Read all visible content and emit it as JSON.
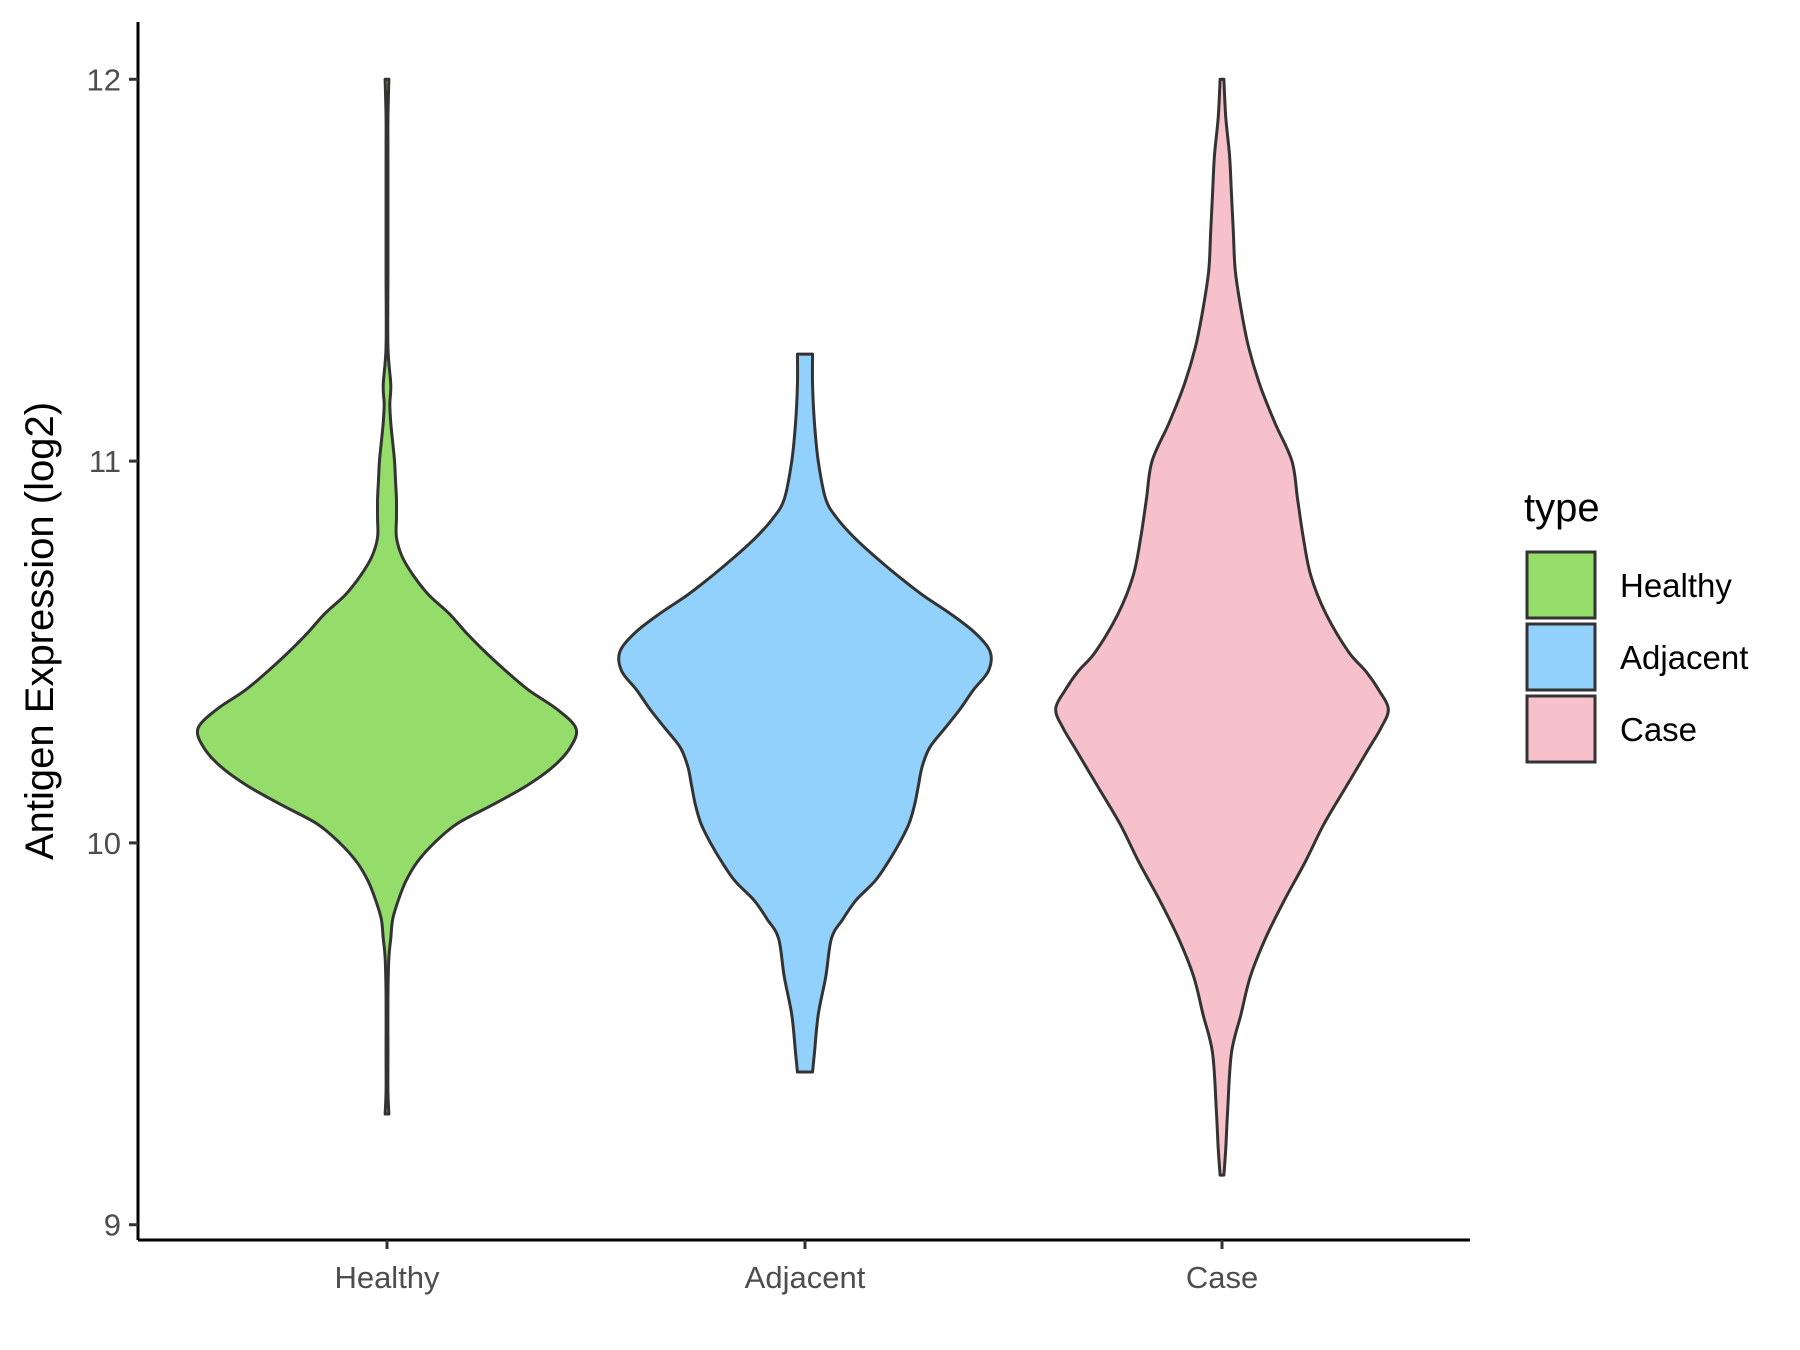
{
  "chart_data": {
    "type": "violin",
    "title": "",
    "xlabel": "",
    "ylabel": "Antigen Expression (log2)",
    "ylim": [
      8.96,
      12.15
    ],
    "yticks": [
      9,
      10,
      11,
      12
    ],
    "ytick_labels": [
      "9",
      "10",
      "11",
      "12"
    ],
    "categories": [
      "Healthy",
      "Adjacent",
      "Case"
    ],
    "grid": false,
    "legend": {
      "title": "type",
      "position": "right",
      "entries": [
        "Healthy",
        "Adjacent",
        "Case"
      ]
    },
    "series": [
      {
        "name": "Healthy",
        "color": "#95dd6b",
        "min": 9.29,
        "max": 12.0,
        "density_profile": [
          [
            9.29,
            0.01
          ],
          [
            9.35,
            0.005
          ],
          [
            9.45,
            0.005
          ],
          [
            9.6,
            0.005
          ],
          [
            9.7,
            0.01
          ],
          [
            9.75,
            0.02
          ],
          [
            9.8,
            0.03
          ],
          [
            9.85,
            0.06
          ],
          [
            9.9,
            0.1
          ],
          [
            9.95,
            0.16
          ],
          [
            10.0,
            0.25
          ],
          [
            10.05,
            0.37
          ],
          [
            10.1,
            0.56
          ],
          [
            10.15,
            0.74
          ],
          [
            10.2,
            0.88
          ],
          [
            10.25,
            0.97
          ],
          [
            10.3,
            1.0
          ],
          [
            10.35,
            0.9
          ],
          [
            10.4,
            0.75
          ],
          [
            10.45,
            0.63
          ],
          [
            10.5,
            0.52
          ],
          [
            10.55,
            0.42
          ],
          [
            10.6,
            0.33
          ],
          [
            10.65,
            0.22
          ],
          [
            10.7,
            0.14
          ],
          [
            10.75,
            0.08
          ],
          [
            10.8,
            0.05
          ],
          [
            10.85,
            0.05
          ],
          [
            10.9,
            0.05
          ],
          [
            10.95,
            0.045
          ],
          [
            11.0,
            0.04
          ],
          [
            11.05,
            0.03
          ],
          [
            11.1,
            0.02
          ],
          [
            11.15,
            0.015
          ],
          [
            11.2,
            0.02
          ],
          [
            11.3,
            0.005
          ],
          [
            11.5,
            0.005
          ],
          [
            11.8,
            0.005
          ],
          [
            11.9,
            0.005
          ],
          [
            12.0,
            0.01
          ]
        ]
      },
      {
        "name": "Adjacent",
        "color": "#92d1fc",
        "min": 9.4,
        "max": 11.28,
        "density_profile": [
          [
            9.4,
            0.04
          ],
          [
            9.45,
            0.05
          ],
          [
            9.55,
            0.07
          ],
          [
            9.65,
            0.11
          ],
          [
            9.75,
            0.14
          ],
          [
            9.8,
            0.2
          ],
          [
            9.85,
            0.27
          ],
          [
            9.9,
            0.37
          ],
          [
            9.95,
            0.44
          ],
          [
            10.0,
            0.5
          ],
          [
            10.05,
            0.55
          ],
          [
            10.1,
            0.58
          ],
          [
            10.15,
            0.6
          ],
          [
            10.2,
            0.62
          ],
          [
            10.25,
            0.66
          ],
          [
            10.3,
            0.74
          ],
          [
            10.35,
            0.82
          ],
          [
            10.4,
            0.89
          ],
          [
            10.45,
            0.97
          ],
          [
            10.5,
            0.98
          ],
          [
            10.55,
            0.9
          ],
          [
            10.6,
            0.77
          ],
          [
            10.65,
            0.62
          ],
          [
            10.7,
            0.49
          ],
          [
            10.75,
            0.37
          ],
          [
            10.8,
            0.26
          ],
          [
            10.85,
            0.17
          ],
          [
            10.9,
            0.11
          ],
          [
            11.0,
            0.07
          ],
          [
            11.1,
            0.05
          ],
          [
            11.2,
            0.04
          ],
          [
            11.28,
            0.04
          ]
        ]
      },
      {
        "name": "Case",
        "color": "#f7c1cb",
        "min": 9.13,
        "max": 12.0,
        "density_profile": [
          [
            9.13,
            0.01
          ],
          [
            9.2,
            0.02
          ],
          [
            9.3,
            0.03
          ],
          [
            9.45,
            0.05
          ],
          [
            9.55,
            0.1
          ],
          [
            9.65,
            0.15
          ],
          [
            9.75,
            0.23
          ],
          [
            9.85,
            0.33
          ],
          [
            9.95,
            0.44
          ],
          [
            10.05,
            0.54
          ],
          [
            10.15,
            0.66
          ],
          [
            10.25,
            0.78
          ],
          [
            10.3,
            0.84
          ],
          [
            10.35,
            0.88
          ],
          [
            10.4,
            0.83
          ],
          [
            10.45,
            0.76
          ],
          [
            10.5,
            0.67
          ],
          [
            10.6,
            0.55
          ],
          [
            10.7,
            0.47
          ],
          [
            10.8,
            0.43
          ],
          [
            10.9,
            0.4
          ],
          [
            11.0,
            0.37
          ],
          [
            11.1,
            0.28
          ],
          [
            11.2,
            0.2
          ],
          [
            11.3,
            0.14
          ],
          [
            11.4,
            0.1
          ],
          [
            11.5,
            0.07
          ],
          [
            11.6,
            0.06
          ],
          [
            11.7,
            0.05
          ],
          [
            11.8,
            0.04
          ],
          [
            11.9,
            0.02
          ],
          [
            12.0,
            0.01
          ]
        ]
      }
    ]
  }
}
